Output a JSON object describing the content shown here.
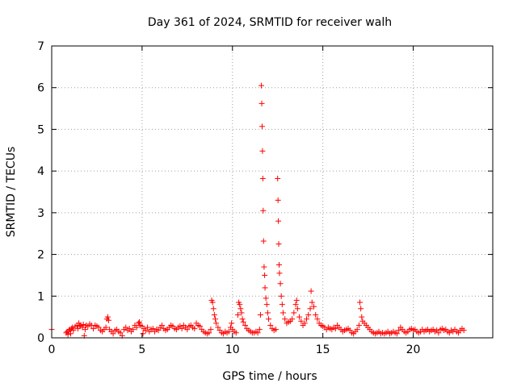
{
  "chart_data": {
    "type": "scatter",
    "title": "Day 361 of 2024, SRMTID for receiver walh",
    "xlabel": "GPS time / hours",
    "ylabel": "SRMTID / TECUs",
    "xlim": [
      0,
      24.4
    ],
    "ylim": [
      0,
      7
    ],
    "xticks": [
      0,
      5,
      10,
      15,
      20
    ],
    "yticks": [
      0,
      1,
      2,
      3,
      4,
      5,
      6,
      7
    ],
    "grid": true,
    "marker": "plus",
    "color": "#ff0000",
    "series": [
      {
        "name": "SRMTID",
        "points": [
          [
            0.0,
            0.2
          ],
          [
            0.8,
            0.12
          ],
          [
            0.85,
            0.15
          ],
          [
            0.9,
            0.08
          ],
          [
            0.95,
            0.18
          ],
          [
            1.0,
            0.2
          ],
          [
            1.05,
            0.1
          ],
          [
            1.1,
            0.22
          ],
          [
            1.15,
            0.25
          ],
          [
            1.2,
            0.18
          ],
          [
            1.3,
            0.27
          ],
          [
            1.4,
            0.3
          ],
          [
            1.45,
            0.22
          ],
          [
            1.5,
            0.35
          ],
          [
            1.55,
            0.28
          ],
          [
            1.6,
            0.3
          ],
          [
            1.7,
            0.25
          ],
          [
            1.75,
            0.32
          ],
          [
            1.8,
            0.05
          ],
          [
            1.85,
            0.2
          ],
          [
            1.9,
            0.3
          ],
          [
            2.0,
            0.27
          ],
          [
            2.1,
            0.33
          ],
          [
            2.2,
            0.3
          ],
          [
            2.3,
            0.22
          ],
          [
            2.4,
            0.3
          ],
          [
            2.5,
            0.28
          ],
          [
            2.6,
            0.25
          ],
          [
            2.7,
            0.18
          ],
          [
            2.8,
            0.15
          ],
          [
            2.9,
            0.2
          ],
          [
            3.0,
            0.25
          ],
          [
            3.05,
            0.45
          ],
          [
            3.1,
            0.5
          ],
          [
            3.15,
            0.42
          ],
          [
            3.2,
            0.2
          ],
          [
            3.3,
            0.15
          ],
          [
            3.4,
            0.1
          ],
          [
            3.5,
            0.18
          ],
          [
            3.6,
            0.2
          ],
          [
            3.7,
            0.15
          ],
          [
            3.8,
            0.12
          ],
          [
            3.9,
            0.05
          ],
          [
            4.0,
            0.2
          ],
          [
            4.1,
            0.25
          ],
          [
            4.2,
            0.18
          ],
          [
            4.3,
            0.22
          ],
          [
            4.4,
            0.15
          ],
          [
            4.5,
            0.2
          ],
          [
            4.6,
            0.3
          ],
          [
            4.7,
            0.25
          ],
          [
            4.8,
            0.35
          ],
          [
            4.85,
            0.38
          ],
          [
            4.9,
            0.3
          ],
          [
            5.0,
            0.28
          ],
          [
            5.05,
            0.1
          ],
          [
            5.1,
            0.22
          ],
          [
            5.2,
            0.18
          ],
          [
            5.3,
            0.25
          ],
          [
            5.4,
            0.15
          ],
          [
            5.5,
            0.2
          ],
          [
            5.6,
            0.22
          ],
          [
            5.7,
            0.15
          ],
          [
            5.8,
            0.2
          ],
          [
            5.9,
            0.18
          ],
          [
            6.0,
            0.25
          ],
          [
            6.1,
            0.3
          ],
          [
            6.2,
            0.22
          ],
          [
            6.3,
            0.18
          ],
          [
            6.4,
            0.2
          ],
          [
            6.5,
            0.25
          ],
          [
            6.6,
            0.3
          ],
          [
            6.7,
            0.28
          ],
          [
            6.8,
            0.22
          ],
          [
            6.9,
            0.2
          ],
          [
            7.0,
            0.25
          ],
          [
            7.1,
            0.28
          ],
          [
            7.2,
            0.22
          ],
          [
            7.3,
            0.3
          ],
          [
            7.4,
            0.25
          ],
          [
            7.5,
            0.2
          ],
          [
            7.6,
            0.28
          ],
          [
            7.7,
            0.3
          ],
          [
            7.8,
            0.25
          ],
          [
            7.9,
            0.22
          ],
          [
            8.0,
            0.35
          ],
          [
            8.1,
            0.3
          ],
          [
            8.2,
            0.28
          ],
          [
            8.3,
            0.2
          ],
          [
            8.4,
            0.15
          ],
          [
            8.5,
            0.12
          ],
          [
            8.6,
            0.1
          ],
          [
            8.7,
            0.12
          ],
          [
            8.8,
            0.2
          ],
          [
            8.85,
            0.9
          ],
          [
            8.9,
            0.85
          ],
          [
            8.95,
            0.7
          ],
          [
            9.0,
            0.55
          ],
          [
            9.05,
            0.45
          ],
          [
            9.1,
            0.35
          ],
          [
            9.2,
            0.25
          ],
          [
            9.3,
            0.18
          ],
          [
            9.4,
            0.12
          ],
          [
            9.5,
            0.1
          ],
          [
            9.6,
            0.15
          ],
          [
            9.7,
            0.12
          ],
          [
            9.8,
            0.15
          ],
          [
            9.9,
            0.25
          ],
          [
            9.95,
            0.35
          ],
          [
            10.0,
            0.2
          ],
          [
            10.1,
            0.15
          ],
          [
            10.2,
            0.12
          ],
          [
            10.3,
            0.55
          ],
          [
            10.35,
            0.85
          ],
          [
            10.4,
            0.8
          ],
          [
            10.45,
            0.7
          ],
          [
            10.5,
            0.6
          ],
          [
            10.55,
            0.45
          ],
          [
            10.6,
            0.38
          ],
          [
            10.7,
            0.3
          ],
          [
            10.8,
            0.22
          ],
          [
            10.9,
            0.18
          ],
          [
            11.0,
            0.15
          ],
          [
            11.1,
            0.12
          ],
          [
            11.2,
            0.12
          ],
          [
            11.3,
            0.15
          ],
          [
            11.4,
            0.12
          ],
          [
            11.5,
            0.2
          ],
          [
            11.55,
            0.55
          ],
          [
            11.6,
            6.05
          ],
          [
            11.62,
            5.62
          ],
          [
            11.64,
            5.07
          ],
          [
            11.66,
            4.48
          ],
          [
            11.68,
            3.82
          ],
          [
            11.7,
            3.05
          ],
          [
            11.72,
            2.32
          ],
          [
            11.75,
            1.7
          ],
          [
            11.78,
            1.5
          ],
          [
            11.8,
            1.2
          ],
          [
            11.85,
            0.95
          ],
          [
            11.9,
            0.8
          ],
          [
            11.95,
            0.6
          ],
          [
            12.0,
            0.45
          ],
          [
            12.1,
            0.3
          ],
          [
            12.2,
            0.22
          ],
          [
            12.3,
            0.18
          ],
          [
            12.4,
            0.2
          ],
          [
            12.5,
            3.82
          ],
          [
            12.52,
            3.3
          ],
          [
            12.54,
            2.8
          ],
          [
            12.56,
            2.25
          ],
          [
            12.58,
            1.75
          ],
          [
            12.6,
            1.55
          ],
          [
            12.65,
            1.3
          ],
          [
            12.7,
            1.0
          ],
          [
            12.75,
            0.8
          ],
          [
            12.8,
            0.6
          ],
          [
            12.9,
            0.45
          ],
          [
            13.0,
            0.35
          ],
          [
            13.1,
            0.38
          ],
          [
            13.2,
            0.4
          ],
          [
            13.3,
            0.45
          ],
          [
            13.4,
            0.6
          ],
          [
            13.5,
            0.8
          ],
          [
            13.55,
            0.9
          ],
          [
            13.6,
            0.7
          ],
          [
            13.7,
            0.5
          ],
          [
            13.8,
            0.4
          ],
          [
            13.9,
            0.3
          ],
          [
            14.0,
            0.35
          ],
          [
            14.1,
            0.45
          ],
          [
            14.2,
            0.55
          ],
          [
            14.3,
            0.7
          ],
          [
            14.35,
            1.12
          ],
          [
            14.4,
            0.85
          ],
          [
            14.5,
            0.75
          ],
          [
            14.6,
            0.55
          ],
          [
            14.7,
            0.45
          ],
          [
            14.8,
            0.35
          ],
          [
            14.9,
            0.3
          ],
          [
            15.0,
            0.28
          ],
          [
            15.1,
            0.25
          ],
          [
            15.2,
            0.2
          ],
          [
            15.3,
            0.25
          ],
          [
            15.4,
            0.22
          ],
          [
            15.5,
            0.2
          ],
          [
            15.6,
            0.25
          ],
          [
            15.7,
            0.22
          ],
          [
            15.8,
            0.3
          ],
          [
            15.9,
            0.25
          ],
          [
            16.0,
            0.2
          ],
          [
            16.1,
            0.15
          ],
          [
            16.2,
            0.18
          ],
          [
            16.3,
            0.2
          ],
          [
            16.4,
            0.22
          ],
          [
            16.5,
            0.18
          ],
          [
            16.6,
            0.12
          ],
          [
            16.7,
            0.1
          ],
          [
            16.8,
            0.15
          ],
          [
            16.9,
            0.2
          ],
          [
            17.0,
            0.3
          ],
          [
            17.05,
            0.85
          ],
          [
            17.1,
            0.7
          ],
          [
            17.15,
            0.5
          ],
          [
            17.2,
            0.4
          ],
          [
            17.3,
            0.35
          ],
          [
            17.4,
            0.3
          ],
          [
            17.5,
            0.25
          ],
          [
            17.6,
            0.2
          ],
          [
            17.7,
            0.15
          ],
          [
            17.8,
            0.12
          ],
          [
            17.9,
            0.1
          ],
          [
            18.0,
            0.12
          ],
          [
            18.1,
            0.15
          ],
          [
            18.2,
            0.1
          ],
          [
            18.3,
            0.12
          ],
          [
            18.4,
            0.1
          ],
          [
            18.5,
            0.12
          ],
          [
            18.6,
            0.15
          ],
          [
            18.7,
            0.1
          ],
          [
            18.8,
            0.12
          ],
          [
            18.9,
            0.15
          ],
          [
            19.0,
            0.12
          ],
          [
            19.1,
            0.1
          ],
          [
            19.2,
            0.18
          ],
          [
            19.3,
            0.25
          ],
          [
            19.4,
            0.2
          ],
          [
            19.5,
            0.15
          ],
          [
            19.6,
            0.12
          ],
          [
            19.7,
            0.15
          ],
          [
            19.8,
            0.2
          ],
          [
            19.9,
            0.22
          ],
          [
            20.0,
            0.18
          ],
          [
            20.1,
            0.2
          ],
          [
            20.2,
            0.15
          ],
          [
            20.3,
            0.12
          ],
          [
            20.4,
            0.15
          ],
          [
            20.5,
            0.2
          ],
          [
            20.6,
            0.15
          ],
          [
            20.7,
            0.18
          ],
          [
            20.8,
            0.2
          ],
          [
            20.9,
            0.15
          ],
          [
            21.0,
            0.18
          ],
          [
            21.1,
            0.2
          ],
          [
            21.2,
            0.15
          ],
          [
            21.3,
            0.18
          ],
          [
            21.4,
            0.12
          ],
          [
            21.5,
            0.2
          ],
          [
            21.6,
            0.22
          ],
          [
            21.7,
            0.18
          ],
          [
            21.8,
            0.2
          ],
          [
            21.9,
            0.15
          ],
          [
            22.0,
            0.12
          ],
          [
            22.1,
            0.18
          ],
          [
            22.2,
            0.15
          ],
          [
            22.3,
            0.2
          ],
          [
            22.4,
            0.15
          ],
          [
            22.5,
            0.12
          ],
          [
            22.6,
            0.18
          ],
          [
            22.7,
            0.22
          ],
          [
            22.8,
            0.18
          ]
        ]
      }
    ]
  }
}
